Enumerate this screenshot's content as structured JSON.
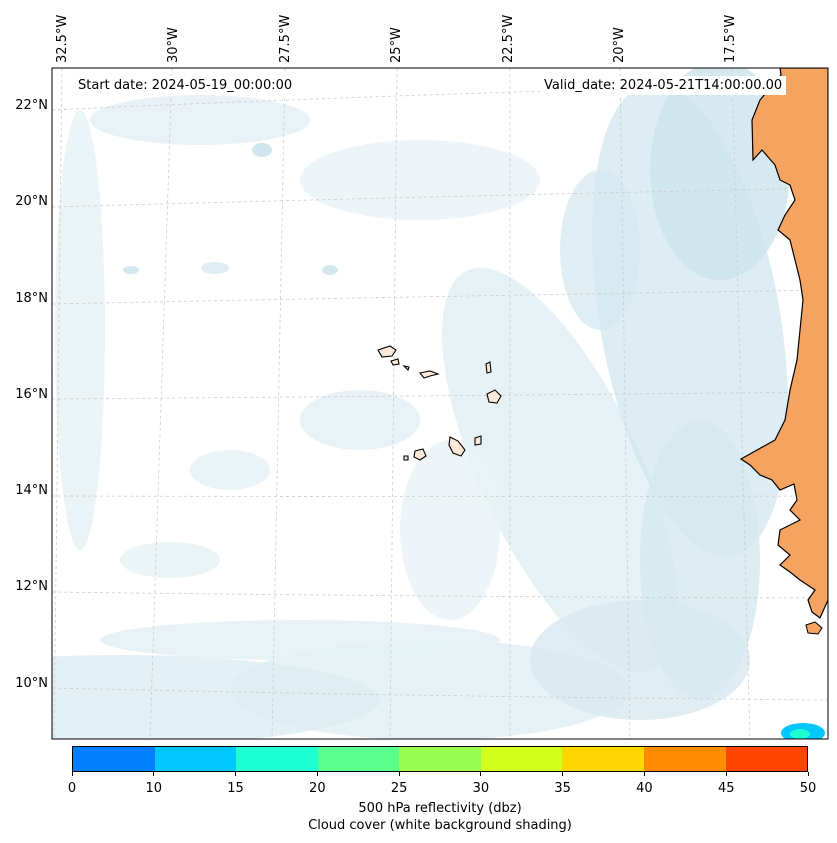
{
  "header": {
    "start_date": "Start date: 2024-05-19_00:00:00",
    "valid_date": "Valid_date: 2024-05-21T14:00:00.00"
  },
  "longitude_labels": [
    "32.5°W",
    "30°W",
    "27.5°W",
    "25°W",
    "22.5°W",
    "20°W",
    "17.5°W"
  ],
  "latitude_labels": [
    "22°N",
    "20°N",
    "18°N",
    "16°N",
    "14°N",
    "12°N",
    "10°N"
  ],
  "colorbar": {
    "ticks": [
      "0",
      "10",
      "15",
      "20",
      "25",
      "30",
      "35",
      "40",
      "45",
      "50"
    ],
    "colors": [
      "#0080ff",
      "#00c8ff",
      "#1effd2",
      "#5aff8c",
      "#96ff50",
      "#d2ff1e",
      "#ffd700",
      "#ff8c00",
      "#ff4500"
    ],
    "label_line1": "500 hPa reflectivity (dbz)",
    "label_line2": "Cloud cover (white background shading)"
  },
  "colors": {
    "land": "#f4a460",
    "island": "#fde9d9",
    "cloud_light": "#dcecf2",
    "cloud_mid": "#c3dfe9",
    "grid": "#cccccc"
  }
}
